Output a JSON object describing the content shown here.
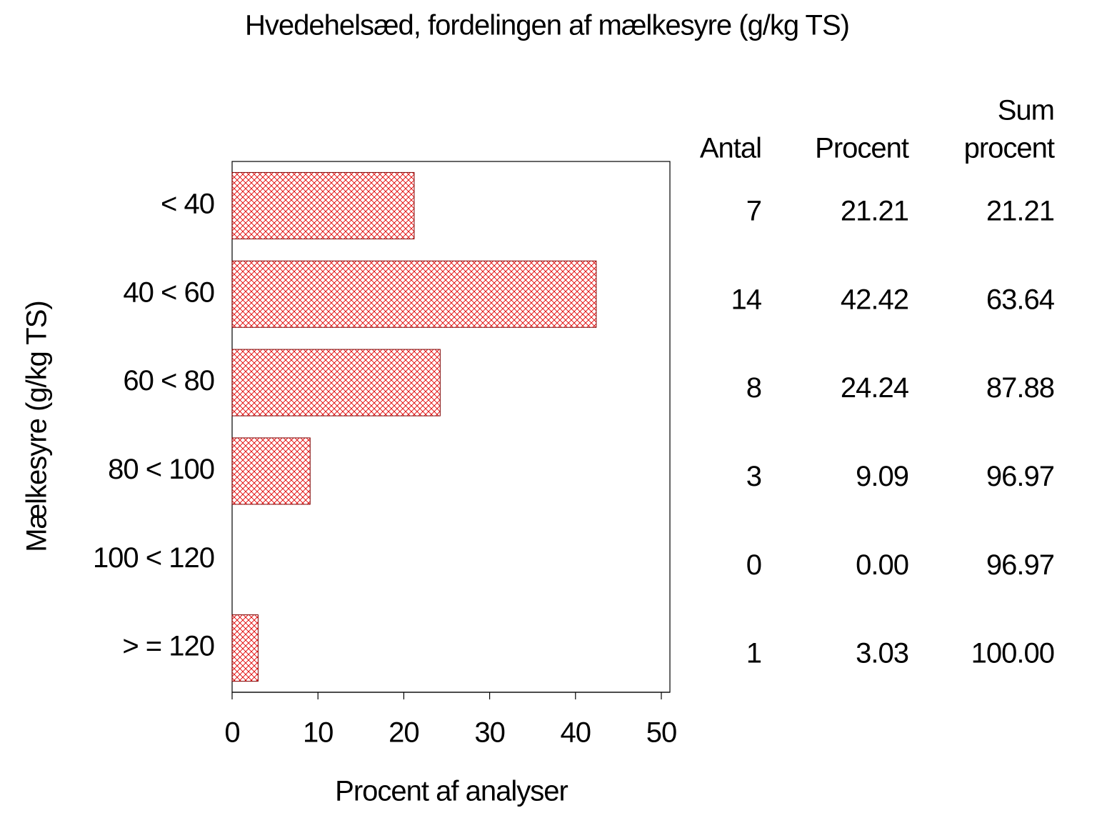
{
  "chart_data": {
    "type": "hbar",
    "title": "Hvedehelsæd, fordelingen af mælkesyre (g/kg TS)",
    "y_label": "Mælkesyre (g/kg TS)",
    "x_label": "Procent af analyser",
    "categories": [
      "< 40",
      "40 < 60",
      "60 < 80",
      "80 < 100",
      "100 < 120",
      "> = 120"
    ],
    "values": [
      21.21,
      42.42,
      24.24,
      9.09,
      0,
      3.03
    ],
    "value_labels": [
      "21.21",
      "42.42",
      "24.24",
      "9.09",
      "0.00",
      "3.03"
    ],
    "color": "#e00000",
    "xlim": [
      0,
      51
    ],
    "xticks": [
      0,
      10,
      20,
      30,
      40,
      50
    ],
    "table": {
      "count_header": "Antal",
      "counts": [
        7,
        14,
        8,
        3,
        0,
        1
      ],
      "percent_header": "Procent",
      "cumulative_header": [
        "Sum",
        "procent"
      ],
      "cumulative": [
        21.21,
        63.64,
        87.88,
        96.97,
        96.97,
        100
      ],
      "cumulative_labels": [
        "21.21",
        "63.64",
        "87.88",
        "96.97",
        "96.97",
        "100.00"
      ]
    }
  }
}
